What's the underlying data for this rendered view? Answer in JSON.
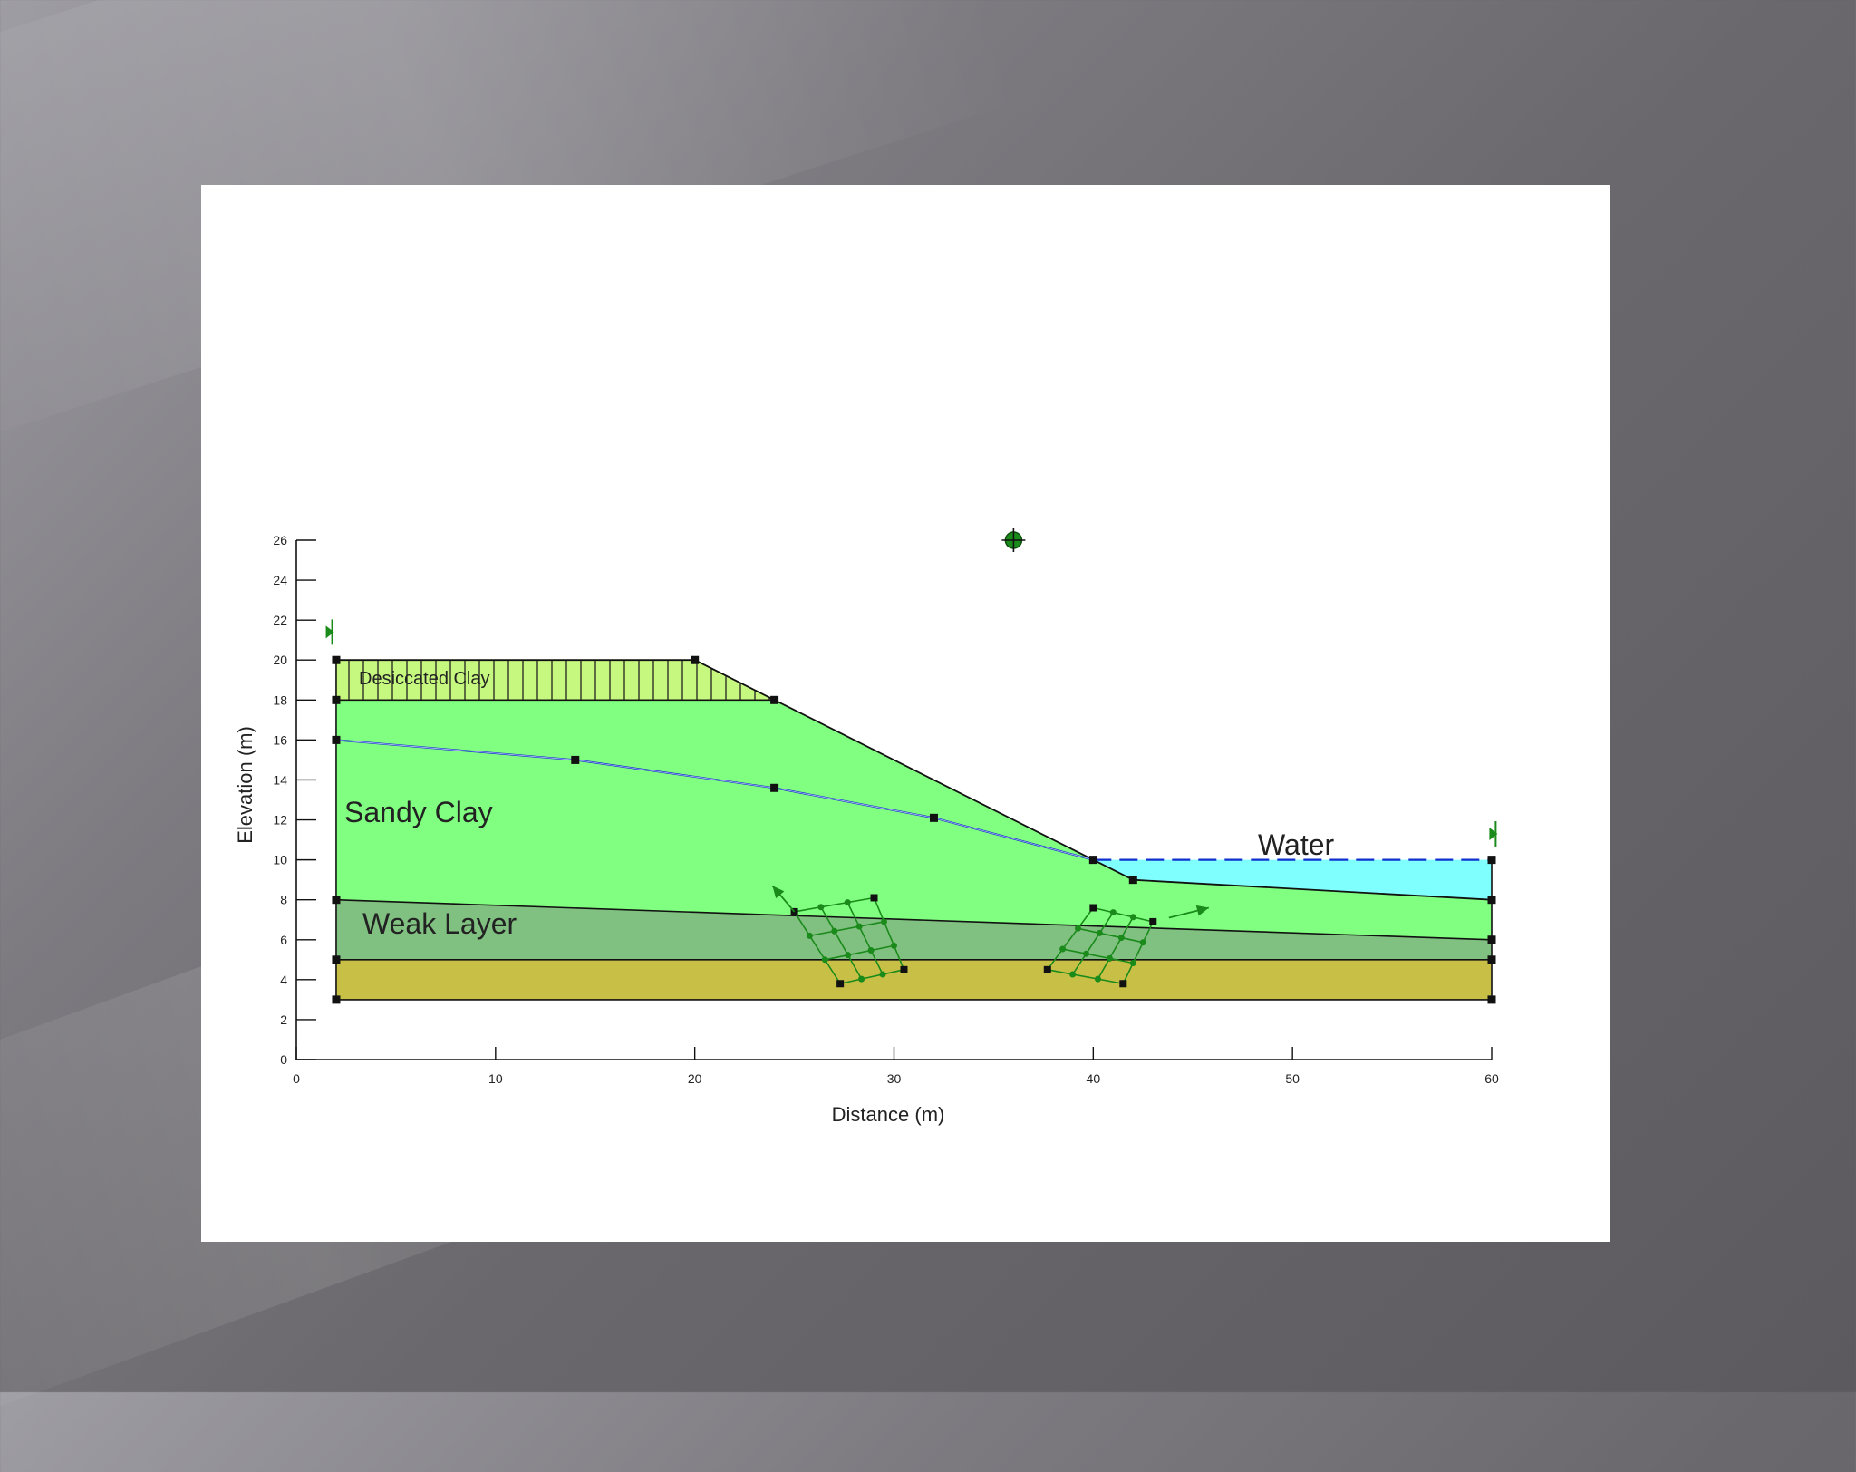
{
  "colors": {
    "background": "#6a686c",
    "card": "#ffffff",
    "sandy_clay": "#80ff80",
    "desiccated_clay": "#c6f77e",
    "weak_layer": "#80c080",
    "bedrock": "#c8c046",
    "water": "#80ffff",
    "piezometric_line": "#1030d0",
    "grid_green": "#1a8a1a",
    "point": "#111111"
  },
  "labels": {
    "desiccated_clay": "Desiccated Clay",
    "sandy_clay": "Sandy Clay",
    "weak_layer": "Weak Layer",
    "water": "Water"
  },
  "chart_data": {
    "type": "diagram",
    "xlabel": "Distance (m)",
    "ylabel": "Elevation (m)",
    "xlim": [
      0,
      60
    ],
    "ylim": [
      0,
      26
    ],
    "xticks": [
      0,
      10,
      20,
      30,
      40,
      50,
      60
    ],
    "yticks": [
      0,
      2,
      4,
      6,
      8,
      10,
      12,
      14,
      16,
      18,
      20,
      22,
      24,
      26
    ],
    "regions": {
      "desiccated_clay": [
        [
          2,
          20
        ],
        [
          20,
          20
        ],
        [
          24,
          18
        ],
        [
          2,
          18
        ]
      ],
      "sandy_clay": [
        [
          2,
          18
        ],
        [
          24,
          18
        ],
        [
          40,
          10
        ],
        [
          42,
          9
        ],
        [
          60,
          8
        ],
        [
          60,
          6
        ],
        [
          2,
          8
        ]
      ],
      "weak_layer": [
        [
          2,
          8
        ],
        [
          60,
          6
        ],
        [
          60,
          5
        ],
        [
          2,
          5
        ]
      ],
      "bedrock": [
        [
          2,
          5
        ],
        [
          60,
          5
        ],
        [
          60,
          3
        ],
        [
          2,
          3
        ]
      ],
      "water": [
        [
          40,
          10
        ],
        [
          60,
          10
        ],
        [
          60,
          8
        ],
        [
          42,
          9
        ]
      ]
    },
    "ground_surface": [
      [
        2,
        20
      ],
      [
        20,
        20
      ],
      [
        24,
        18
      ],
      [
        40,
        10
      ],
      [
        42,
        9
      ],
      [
        60,
        8
      ]
    ],
    "piezometric_line": [
      [
        2,
        16
      ],
      [
        14,
        15
      ],
      [
        24,
        13.6
      ],
      [
        32,
        12.1
      ],
      [
        40,
        10
      ],
      [
        60,
        10
      ]
    ],
    "layer_boundaries": [
      [
        [
          2,
          18
        ],
        [
          24,
          18
        ]
      ],
      [
        [
          2,
          8
        ],
        [
          60,
          6
        ]
      ],
      [
        [
          2,
          5
        ],
        [
          60,
          5
        ]
      ],
      [
        [
          2,
          3
        ],
        [
          60,
          3
        ]
      ]
    ],
    "points": [
      [
        2,
        20
      ],
      [
        2,
        18
      ],
      [
        2,
        16
      ],
      [
        2,
        8
      ],
      [
        2,
        5
      ],
      [
        2,
        3
      ],
      [
        20,
        20
      ],
      [
        24,
        18
      ],
      [
        14,
        15
      ],
      [
        24,
        13.6
      ],
      [
        32,
        12.1
      ],
      [
        40,
        10
      ],
      [
        42,
        9
      ],
      [
        60,
        10
      ],
      [
        60,
        8
      ],
      [
        60,
        6
      ],
      [
        60,
        5
      ],
      [
        60,
        3
      ]
    ],
    "grids": [
      [
        [
          25,
          7.4
        ],
        [
          29,
          8.1
        ],
        [
          30.5,
          4.5
        ],
        [
          27.3,
          3.8
        ]
      ],
      [
        [
          37.7,
          4.5
        ],
        [
          41.5,
          3.8
        ],
        [
          43,
          6.9
        ],
        [
          40,
          7.6
        ]
      ]
    ],
    "grid_arrows": [
      [
        [
          25,
          7.4
        ],
        [
          23.9,
          8.7
        ]
      ],
      [
        [
          43.8,
          7.1
        ],
        [
          45.8,
          7.6
        ]
      ]
    ],
    "centre_point": [
      36,
      26
    ],
    "boundary_markers": [
      [
        1.8,
        21.4
      ],
      [
        60.2,
        11.3
      ]
    ]
  }
}
